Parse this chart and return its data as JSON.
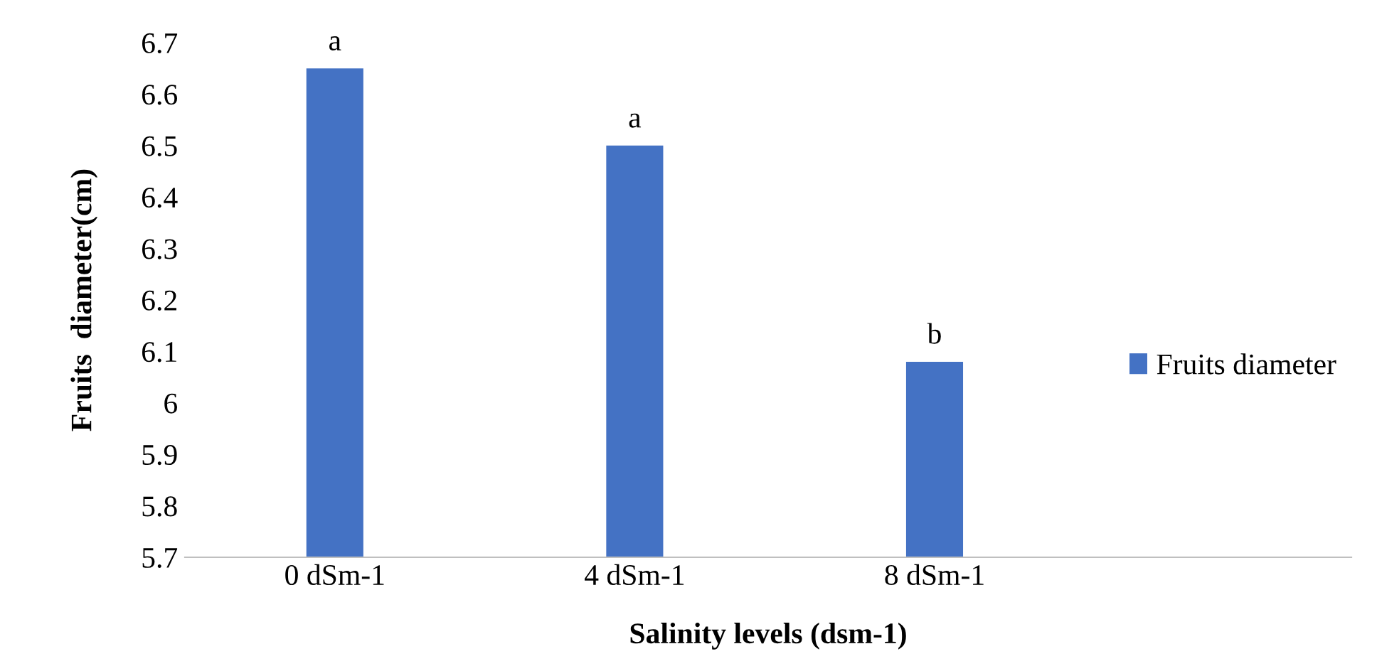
{
  "chart_data": {
    "type": "bar",
    "xlabel": "Salinity levels (dsm-1)",
    "ylabel": "Fruits  diameter(cm)",
    "categories": [
      "0 dSm-1",
      "4 dSm-1",
      "8 dSm-1"
    ],
    "series": [
      {
        "name": "Fruits diameter",
        "color": "#4472c4",
        "values": [
          6.65,
          6.5,
          6.08
        ]
      }
    ],
    "ylim": [
      5.7,
      6.7
    ],
    "yticks": [
      5.7,
      5.8,
      5.9,
      6,
      6.1,
      6.2,
      6.3,
      6.4,
      6.5,
      6.6,
      6.7
    ],
    "annotations": [
      {
        "text": "a",
        "x": "0 dSm-1",
        "y": 6.65
      },
      {
        "text": "a",
        "x": "4 dSm-1",
        "y": 6.5
      },
      {
        "text": "b",
        "x": "8 dSm-1",
        "y": 6.08
      }
    ],
    "grid": false,
    "legend": "right"
  }
}
